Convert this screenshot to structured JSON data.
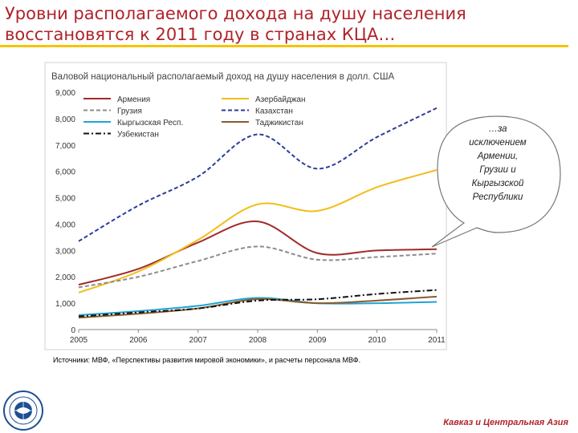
{
  "slide": {
    "title_lines": [
      "Уровни располагаемого дохода на душу населения",
      "восстановятся к 2011 году в странах КЦА…"
    ],
    "source": "Источники: МВФ, «Перспективы развития мировой экономики», и расчеты персонала МВФ.",
    "region": "Кавказ и Центральная Азия",
    "callout_lines": [
      "…за",
      "исключением",
      "Армении,",
      "Грузии и",
      "Кыргызской",
      "Республики"
    ]
  },
  "colors": {
    "title": "#b0232a",
    "accent_rule": "#f5c400"
  },
  "chart_data": {
    "type": "line",
    "title": "Валовой национальный располагаемый доход на душу населения в долл. США",
    "xlabel": "",
    "ylabel": "",
    "ylim": [
      0,
      9000
    ],
    "yticks": [
      0,
      1000,
      2000,
      3000,
      4000,
      5000,
      6000,
      7000,
      8000,
      9000
    ],
    "ytick_labels": [
      "0",
      "1,000",
      "2,000",
      "3,000",
      "4,000",
      "5,000",
      "6,000",
      "7,000",
      "8,000",
      "9,000"
    ],
    "x": [
      "2005",
      "2006",
      "2007",
      "2008",
      "2009",
      "2010",
      "2011"
    ],
    "grid": false,
    "legend_position": "top-left",
    "series": [
      {
        "name": "Армения",
        "color": "#a12a2a",
        "dash": "solid",
        "values": [
          1700,
          2300,
          3300,
          4100,
          2900,
          3000,
          3050
        ]
      },
      {
        "name": "Азербайджан",
        "color": "#f2bd1a",
        "dash": "solid",
        "values": [
          1400,
          2200,
          3400,
          4750,
          4500,
          5400,
          6050
        ]
      },
      {
        "name": "Грузия",
        "color": "#8c8c8c",
        "dash": "dashed",
        "values": [
          1600,
          2000,
          2600,
          3150,
          2650,
          2750,
          2880
        ]
      },
      {
        "name": "Казахстан",
        "color": "#2b3b9a",
        "dash": "dashed",
        "values": [
          3350,
          4700,
          5800,
          7400,
          6100,
          7300,
          8400
        ]
      },
      {
        "name": "Кыргызская Респ.",
        "color": "#1fa4d6",
        "dash": "solid",
        "values": [
          550,
          700,
          900,
          1200,
          1000,
          1000,
          1050
        ]
      },
      {
        "name": "Таджикистан",
        "color": "#8b5a2b",
        "dash": "solid",
        "values": [
          450,
          600,
          800,
          1150,
          1000,
          1100,
          1250
        ]
      },
      {
        "name": "Узбекистан",
        "color": "#111111",
        "dash": "dashdot",
        "values": [
          500,
          650,
          800,
          1100,
          1150,
          1350,
          1500
        ]
      }
    ]
  }
}
